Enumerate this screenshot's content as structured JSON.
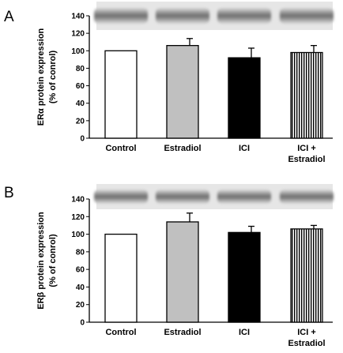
{
  "chart_data": [
    {
      "type": "bar",
      "panel_label": "A",
      "ylabel": "ERα protein expression",
      "ylabel_line2": "(% of conrol)",
      "categories": [
        "Control",
        "Estradiol",
        "ICI",
        "ICI +"
      ],
      "category_line2": [
        "",
        "",
        "",
        "Estradiol"
      ],
      "values": [
        100,
        106,
        92,
        98
      ],
      "errors": [
        0,
        8,
        11,
        8
      ],
      "bar_fills": [
        "white",
        "gray",
        "black",
        "vertical-stripes"
      ],
      "ylim": [
        0,
        140
      ],
      "yticks": [
        0,
        20,
        40,
        60,
        80,
        100,
        120,
        140
      ],
      "grid": false,
      "western_blot_strip": true
    },
    {
      "type": "bar",
      "panel_label": "B",
      "ylabel": "ERβ protein expression",
      "ylabel_line2": "(% of conrol)",
      "categories": [
        "Control",
        "Estradiol",
        "ICI",
        "ICI +"
      ],
      "category_line2": [
        "",
        "",
        "",
        "Estradiol"
      ],
      "values": [
        100,
        114,
        102,
        106
      ],
      "errors": [
        0,
        10,
        7,
        4
      ],
      "bar_fills": [
        "white",
        "gray",
        "black",
        "vertical-stripes"
      ],
      "ylim": [
        0,
        140
      ],
      "yticks": [
        0,
        20,
        40,
        60,
        80,
        100,
        120,
        140
      ],
      "grid": false,
      "western_blot_strip": true
    }
  ],
  "colors": {
    "gray_bar": "#c0c0c0",
    "black_bar": "#000000",
    "axis": "#000000"
  }
}
